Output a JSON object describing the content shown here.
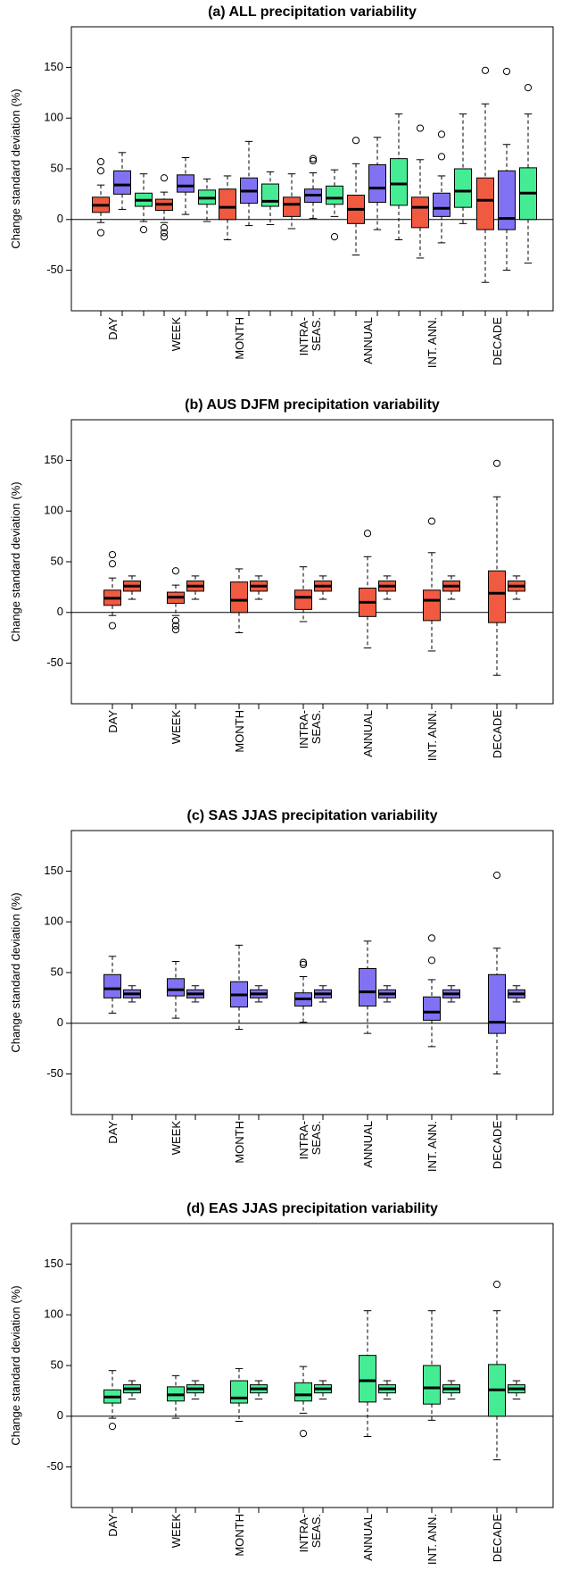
{
  "colors": {
    "red": "#f05a41",
    "blue": "#8072f2",
    "green": "#46ec94"
  },
  "chart_data": [
    {
      "type": "box",
      "title": "(a) ALL precipitation variability",
      "ylabel": "Change standard deviation (%)",
      "yticks": [
        -50,
        0,
        50,
        100,
        150
      ],
      "ytick_labels": [
        "-50",
        "0",
        "50",
        "100",
        "150"
      ],
      "ylim": [
        -90,
        190
      ],
      "categories": [
        "DAY",
        "WEEK",
        "MONTH",
        "INTRA-\nSEAS.",
        "ANNUAL",
        "INT. ANN.",
        "DECADE"
      ],
      "boxes": [
        {
          "cat": 0,
          "offset": -1,
          "color": "red",
          "min": -3,
          "q1": 7,
          "median": 14,
          "q3": 22,
          "max": 34,
          "outliers": [
            57,
            48,
            -13
          ]
        },
        {
          "cat": 0,
          "offset": 0,
          "color": "blue",
          "min": 10,
          "q1": 25,
          "median": 34,
          "q3": 48,
          "max": 66,
          "outliers": []
        },
        {
          "cat": 0,
          "offset": 1,
          "color": "green",
          "min": -2,
          "q1": 13,
          "median": 19,
          "q3": 26,
          "max": 45,
          "outliers": [
            -10
          ]
        },
        {
          "cat": 1,
          "offset": -1,
          "color": "red",
          "min": -3,
          "q1": 9,
          "median": 15,
          "q3": 20,
          "max": 27,
          "outliers": [
            41,
            -8,
            -13,
            -17
          ]
        },
        {
          "cat": 1,
          "offset": 0,
          "color": "blue",
          "min": 5,
          "q1": 27,
          "median": 33,
          "q3": 44,
          "max": 61,
          "outliers": []
        },
        {
          "cat": 1,
          "offset": 1,
          "color": "green",
          "min": -2,
          "q1": 15,
          "median": 21,
          "q3": 29,
          "max": 40,
          "outliers": []
        },
        {
          "cat": 2,
          "offset": -1,
          "color": "red",
          "min": -20,
          "q1": 0,
          "median": 12,
          "q3": 30,
          "max": 43,
          "outliers": []
        },
        {
          "cat": 2,
          "offset": 0,
          "color": "blue",
          "min": -6,
          "q1": 16,
          "median": 28,
          "q3": 41,
          "max": 77,
          "outliers": []
        },
        {
          "cat": 2,
          "offset": 1,
          "color": "green",
          "min": -5,
          "q1": 13,
          "median": 18,
          "q3": 35,
          "max": 47,
          "outliers": []
        },
        {
          "cat": 3,
          "offset": -1,
          "color": "red",
          "min": -9,
          "q1": 3,
          "median": 15,
          "q3": 22,
          "max": 45,
          "outliers": []
        },
        {
          "cat": 3,
          "offset": 0,
          "color": "blue",
          "min": 1,
          "q1": 17,
          "median": 24,
          "q3": 30,
          "max": 46,
          "outliers": [
            60,
            58
          ]
        },
        {
          "cat": 3,
          "offset": 1,
          "color": "green",
          "min": 3,
          "q1": 15,
          "median": 21,
          "q3": 33,
          "max": 49,
          "outliers": [
            -17
          ]
        },
        {
          "cat": 4,
          "offset": -1,
          "color": "red",
          "min": -35,
          "q1": -4,
          "median": 10,
          "q3": 24,
          "max": 55,
          "outliers": [
            78
          ]
        },
        {
          "cat": 4,
          "offset": 0,
          "color": "blue",
          "min": -10,
          "q1": 17,
          "median": 31,
          "q3": 54,
          "max": 81,
          "outliers": []
        },
        {
          "cat": 4,
          "offset": 1,
          "color": "green",
          "min": -20,
          "q1": 14,
          "median": 35,
          "q3": 60,
          "max": 104,
          "outliers": []
        },
        {
          "cat": 5,
          "offset": -1,
          "color": "red",
          "min": -38,
          "q1": -8,
          "median": 12,
          "q3": 22,
          "max": 59,
          "outliers": [
            90
          ]
        },
        {
          "cat": 5,
          "offset": 0,
          "color": "blue",
          "min": -23,
          "q1": 3,
          "median": 11,
          "q3": 26,
          "max": 43,
          "outliers": [
            84,
            62
          ]
        },
        {
          "cat": 5,
          "offset": 1,
          "color": "green",
          "min": -4,
          "q1": 12,
          "median": 28,
          "q3": 50,
          "max": 104,
          "outliers": []
        },
        {
          "cat": 6,
          "offset": -1,
          "color": "red",
          "min": -62,
          "q1": -10,
          "median": 19,
          "q3": 41,
          "max": 114,
          "outliers": [
            147
          ]
        },
        {
          "cat": 6,
          "offset": 0,
          "color": "blue",
          "min": -50,
          "q1": -10,
          "median": 1,
          "q3": 48,
          "max": 74,
          "outliers": [
            146
          ]
        },
        {
          "cat": 6,
          "offset": 1,
          "color": "green",
          "min": -43,
          "q1": 0,
          "median": 26,
          "q3": 51,
          "max": 104,
          "outliers": [
            130
          ]
        }
      ]
    },
    {
      "type": "box",
      "title": "(b) AUS DJFM precipitation variability",
      "ylabel": "Change standard deviation (%)",
      "yticks": [
        -50,
        0,
        50,
        100,
        150
      ],
      "ytick_labels": [
        "-50",
        "0",
        "50",
        "100",
        "150"
      ],
      "ylim": [
        -90,
        190
      ],
      "categories": [
        "DAY",
        "WEEK",
        "MONTH",
        "INTRA-\nSEAS.",
        "ANNUAL",
        "INT. ANN.",
        "DECADE"
      ],
      "boxes": [
        {
          "cat": 0,
          "offset": -0.5,
          "color": "red",
          "min": -3,
          "q1": 7,
          "median": 14,
          "q3": 22,
          "max": 34,
          "outliers": [
            57,
            48,
            -13
          ]
        },
        {
          "cat": 0,
          "offset": 0.5,
          "color": "red",
          "min": 13,
          "q1": 21,
          "median": 26,
          "q3": 31,
          "max": 36,
          "outliers": []
        },
        {
          "cat": 1,
          "offset": -0.5,
          "color": "red",
          "min": -3,
          "q1": 9,
          "median": 15,
          "q3": 20,
          "max": 27,
          "outliers": [
            41,
            -8,
            -13,
            -17
          ]
        },
        {
          "cat": 1,
          "offset": 0.5,
          "color": "red",
          "min": 13,
          "q1": 21,
          "median": 26,
          "q3": 31,
          "max": 36,
          "outliers": []
        },
        {
          "cat": 2,
          "offset": -0.5,
          "color": "red",
          "min": -20,
          "q1": 0,
          "median": 12,
          "q3": 30,
          "max": 43,
          "outliers": []
        },
        {
          "cat": 2,
          "offset": 0.5,
          "color": "red",
          "min": 13,
          "q1": 21,
          "median": 26,
          "q3": 31,
          "max": 36,
          "outliers": []
        },
        {
          "cat": 3,
          "offset": -0.5,
          "color": "red",
          "min": -9,
          "q1": 3,
          "median": 15,
          "q3": 22,
          "max": 45,
          "outliers": []
        },
        {
          "cat": 3,
          "offset": 0.5,
          "color": "red",
          "min": 13,
          "q1": 21,
          "median": 26,
          "q3": 31,
          "max": 36,
          "outliers": []
        },
        {
          "cat": 4,
          "offset": -0.5,
          "color": "red",
          "min": -35,
          "q1": -4,
          "median": 10,
          "q3": 24,
          "max": 55,
          "outliers": [
            78
          ]
        },
        {
          "cat": 4,
          "offset": 0.5,
          "color": "red",
          "min": 13,
          "q1": 21,
          "median": 26,
          "q3": 31,
          "max": 36,
          "outliers": []
        },
        {
          "cat": 5,
          "offset": -0.5,
          "color": "red",
          "min": -38,
          "q1": -8,
          "median": 12,
          "q3": 22,
          "max": 59,
          "outliers": [
            90
          ]
        },
        {
          "cat": 5,
          "offset": 0.5,
          "color": "red",
          "min": 13,
          "q1": 21,
          "median": 26,
          "q3": 31,
          "max": 36,
          "outliers": []
        },
        {
          "cat": 6,
          "offset": -0.5,
          "color": "red",
          "min": -62,
          "q1": -10,
          "median": 19,
          "q3": 41,
          "max": 114,
          "outliers": [
            147
          ]
        },
        {
          "cat": 6,
          "offset": 0.5,
          "color": "red",
          "min": 13,
          "q1": 21,
          "median": 26,
          "q3": 31,
          "max": 36,
          "outliers": []
        }
      ]
    },
    {
      "type": "box",
      "title": "(c) SAS JJAS precipitation variability",
      "ylabel": "Change standard deviation (%)",
      "yticks": [
        -50,
        0,
        50,
        100,
        150
      ],
      "ytick_labels": [
        "-50",
        "0",
        "50",
        "100",
        "150"
      ],
      "ylim": [
        -90,
        190
      ],
      "categories": [
        "DAY",
        "WEEK",
        "MONTH",
        "INTRA-\nSEAS.",
        "ANNUAL",
        "INT. ANN.",
        "DECADE"
      ],
      "boxes": [
        {
          "cat": 0,
          "offset": -0.5,
          "color": "blue",
          "min": 10,
          "q1": 25,
          "median": 34,
          "q3": 48,
          "max": 66,
          "outliers": []
        },
        {
          "cat": 0,
          "offset": 0.5,
          "color": "blue",
          "min": 21,
          "q1": 25,
          "median": 29,
          "q3": 33,
          "max": 37,
          "outliers": []
        },
        {
          "cat": 1,
          "offset": -0.5,
          "color": "blue",
          "min": 5,
          "q1": 27,
          "median": 33,
          "q3": 44,
          "max": 61,
          "outliers": []
        },
        {
          "cat": 1,
          "offset": 0.5,
          "color": "blue",
          "min": 21,
          "q1": 25,
          "median": 29,
          "q3": 33,
          "max": 37,
          "outliers": []
        },
        {
          "cat": 2,
          "offset": -0.5,
          "color": "blue",
          "min": -6,
          "q1": 16,
          "median": 28,
          "q3": 41,
          "max": 77,
          "outliers": []
        },
        {
          "cat": 2,
          "offset": 0.5,
          "color": "blue",
          "min": 21,
          "q1": 25,
          "median": 29,
          "q3": 33,
          "max": 37,
          "outliers": []
        },
        {
          "cat": 3,
          "offset": -0.5,
          "color": "blue",
          "min": 1,
          "q1": 17,
          "median": 24,
          "q3": 30,
          "max": 46,
          "outliers": [
            60,
            58
          ]
        },
        {
          "cat": 3,
          "offset": 0.5,
          "color": "blue",
          "min": 21,
          "q1": 25,
          "median": 29,
          "q3": 33,
          "max": 37,
          "outliers": []
        },
        {
          "cat": 4,
          "offset": -0.5,
          "color": "blue",
          "min": -10,
          "q1": 17,
          "median": 31,
          "q3": 54,
          "max": 81,
          "outliers": []
        },
        {
          "cat": 4,
          "offset": 0.5,
          "color": "blue",
          "min": 21,
          "q1": 25,
          "median": 29,
          "q3": 33,
          "max": 37,
          "outliers": []
        },
        {
          "cat": 5,
          "offset": -0.5,
          "color": "blue",
          "min": -23,
          "q1": 3,
          "median": 11,
          "q3": 26,
          "max": 43,
          "outliers": [
            84,
            62
          ]
        },
        {
          "cat": 5,
          "offset": 0.5,
          "color": "blue",
          "min": 21,
          "q1": 25,
          "median": 29,
          "q3": 33,
          "max": 37,
          "outliers": []
        },
        {
          "cat": 6,
          "offset": -0.5,
          "color": "blue",
          "min": -50,
          "q1": -10,
          "median": 1,
          "q3": 48,
          "max": 74,
          "outliers": [
            146
          ]
        },
        {
          "cat": 6,
          "offset": 0.5,
          "color": "blue",
          "min": 21,
          "q1": 25,
          "median": 29,
          "q3": 33,
          "max": 37,
          "outliers": []
        }
      ]
    },
    {
      "type": "box",
      "title": "(d) EAS JJAS precipitation variability",
      "ylabel": "Change standard deviation (%)",
      "yticks": [
        -50,
        0,
        50,
        100,
        150
      ],
      "ytick_labels": [
        "-50",
        "0",
        "50",
        "100",
        "150"
      ],
      "ylim": [
        -90,
        190
      ],
      "categories": [
        "DAY",
        "WEEK",
        "MONTH",
        "INTRA-\nSEAS.",
        "ANNUAL",
        "INT. ANN.",
        "DECADE"
      ],
      "boxes": [
        {
          "cat": 0,
          "offset": -0.5,
          "color": "green",
          "min": -2,
          "q1": 13,
          "median": 19,
          "q3": 26,
          "max": 45,
          "outliers": [
            -10
          ]
        },
        {
          "cat": 0,
          "offset": 0.5,
          "color": "green",
          "min": 17,
          "q1": 23,
          "median": 27,
          "q3": 31,
          "max": 35,
          "outliers": []
        },
        {
          "cat": 1,
          "offset": -0.5,
          "color": "green",
          "min": -2,
          "q1": 15,
          "median": 21,
          "q3": 29,
          "max": 40,
          "outliers": []
        },
        {
          "cat": 1,
          "offset": 0.5,
          "color": "green",
          "min": 17,
          "q1": 23,
          "median": 27,
          "q3": 31,
          "max": 35,
          "outliers": []
        },
        {
          "cat": 2,
          "offset": -0.5,
          "color": "green",
          "min": -5,
          "q1": 13,
          "median": 18,
          "q3": 35,
          "max": 47,
          "outliers": []
        },
        {
          "cat": 2,
          "offset": 0.5,
          "color": "green",
          "min": 17,
          "q1": 23,
          "median": 27,
          "q3": 31,
          "max": 35,
          "outliers": []
        },
        {
          "cat": 3,
          "offset": -0.5,
          "color": "green",
          "min": 3,
          "q1": 15,
          "median": 21,
          "q3": 33,
          "max": 49,
          "outliers": [
            -17
          ]
        },
        {
          "cat": 3,
          "offset": 0.5,
          "color": "green",
          "min": 17,
          "q1": 23,
          "median": 27,
          "q3": 31,
          "max": 35,
          "outliers": []
        },
        {
          "cat": 4,
          "offset": -0.5,
          "color": "green",
          "min": -20,
          "q1": 14,
          "median": 35,
          "q3": 60,
          "max": 104,
          "outliers": []
        },
        {
          "cat": 4,
          "offset": 0.5,
          "color": "green",
          "min": 17,
          "q1": 23,
          "median": 27,
          "q3": 31,
          "max": 35,
          "outliers": []
        },
        {
          "cat": 5,
          "offset": -0.5,
          "color": "green",
          "min": -4,
          "q1": 12,
          "median": 28,
          "q3": 50,
          "max": 104,
          "outliers": []
        },
        {
          "cat": 5,
          "offset": 0.5,
          "color": "green",
          "min": 17,
          "q1": 23,
          "median": 27,
          "q3": 31,
          "max": 35,
          "outliers": []
        },
        {
          "cat": 6,
          "offset": -0.5,
          "color": "green",
          "min": -43,
          "q1": 0,
          "median": 26,
          "q3": 51,
          "max": 104,
          "outliers": [
            130
          ]
        },
        {
          "cat": 6,
          "offset": 0.5,
          "color": "green",
          "min": 17,
          "q1": 23,
          "median": 27,
          "q3": 31,
          "max": 35,
          "outliers": []
        }
      ]
    }
  ]
}
